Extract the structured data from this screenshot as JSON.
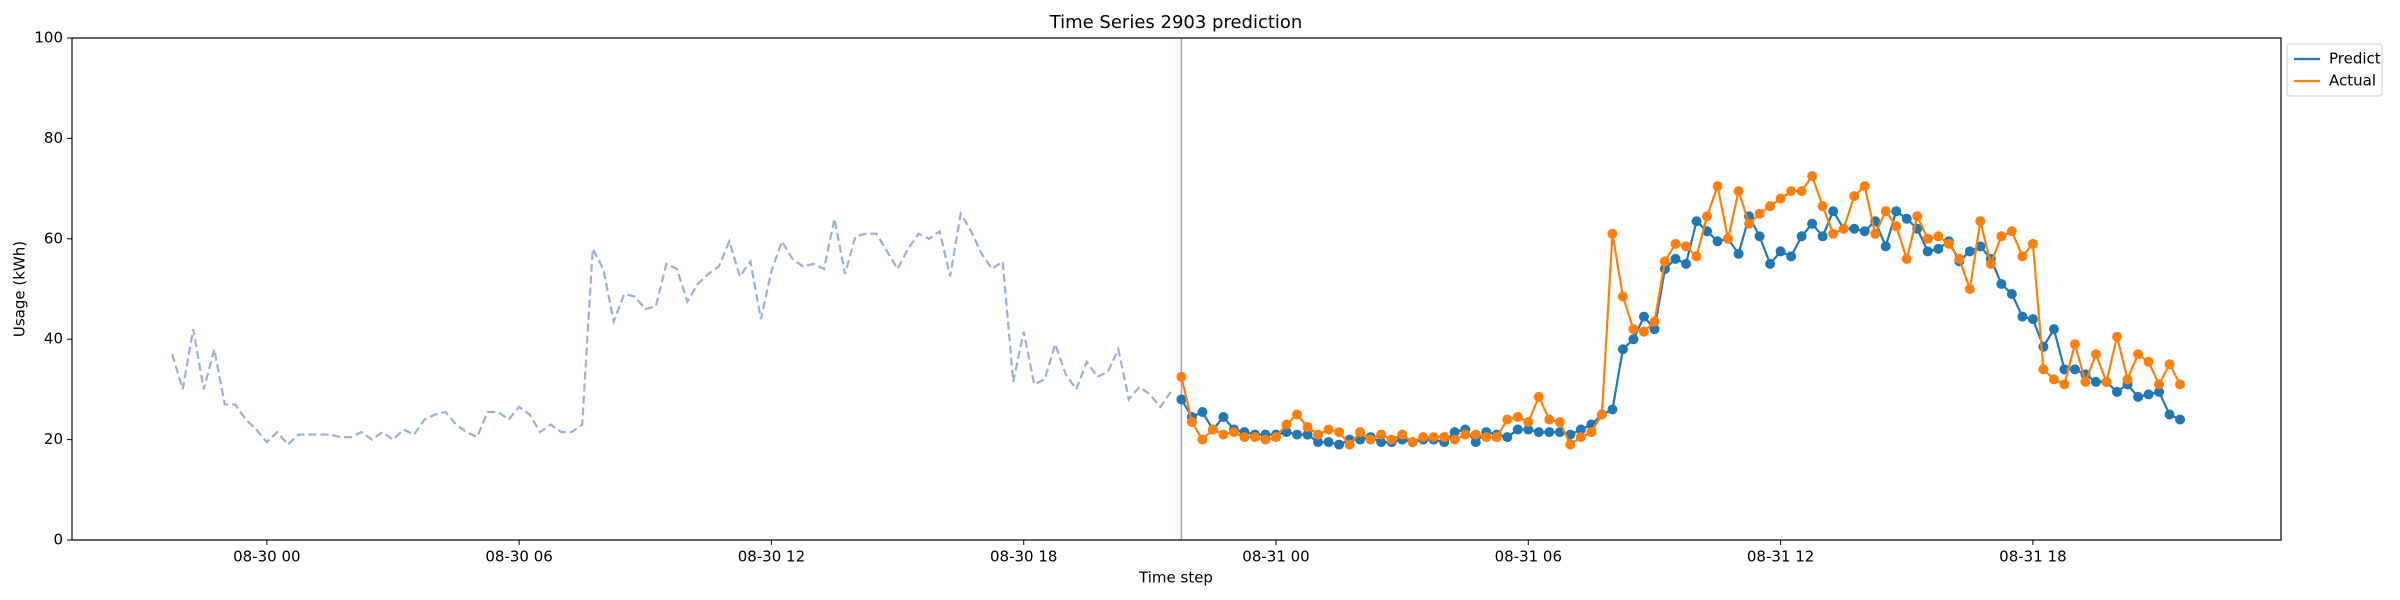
{
  "chart_data": {
    "type": "line",
    "title": "Time Series 2903 prediction",
    "xlabel": "Time step",
    "ylabel": "Usage (kWh)",
    "xlim": [
      "08-29 19:22",
      "08-31 23:54"
    ],
    "xticks": [
      {
        "value": "08-30 00:00",
        "label": "08-30 00"
      },
      {
        "value": "08-30 06:00",
        "label": "08-30 06"
      },
      {
        "value": "08-30 12:00",
        "label": "08-30 12"
      },
      {
        "value": "08-30 18:00",
        "label": "08-30 18"
      },
      {
        "value": "08-31 00:00",
        "label": "08-31 00"
      },
      {
        "value": "08-31 06:00",
        "label": "08-31 06"
      },
      {
        "value": "08-31 12:00",
        "label": "08-31 12"
      },
      {
        "value": "08-31 18:00",
        "label": "08-31 18"
      }
    ],
    "ylim": [
      0,
      100
    ],
    "yticks": [
      0,
      20,
      40,
      60,
      80,
      100
    ],
    "grid": false,
    "legend": "outside-upper-right",
    "vline": "08-30 21:45",
    "vline_color": "#8ea6d6",
    "history": {
      "color": "#9ab0d6",
      "x": [
        "08-29 21:45",
        "08-29 22:00",
        "08-29 22:15",
        "08-29 22:30",
        "08-29 22:45",
        "08-29 23:00",
        "08-29 23:15",
        "08-29 23:30",
        "08-29 23:45",
        "08-30 00:00",
        "08-30 00:15",
        "08-30 00:30",
        "08-30 00:45",
        "08-30 01:00",
        "08-30 01:15",
        "08-30 01:30",
        "08-30 01:45",
        "08-30 02:00",
        "08-30 02:15",
        "08-30 02:30",
        "08-30 02:45",
        "08-30 03:00",
        "08-30 03:15",
        "08-30 03:30",
        "08-30 03:45",
        "08-30 04:00",
        "08-30 04:15",
        "08-30 04:30",
        "08-30 04:45",
        "08-30 05:00",
        "08-30 05:15",
        "08-30 05:30",
        "08-30 05:45",
        "08-30 06:00",
        "08-30 06:15",
        "08-30 06:30",
        "08-30 06:45",
        "08-30 07:00",
        "08-30 07:15",
        "08-30 07:30",
        "08-30 07:45",
        "08-30 08:00",
        "08-30 08:15",
        "08-30 08:30",
        "08-30 08:45",
        "08-30 09:00",
        "08-30 09:15",
        "08-30 09:30",
        "08-30 09:45",
        "08-30 10:00",
        "08-30 10:15",
        "08-30 10:30",
        "08-30 10:45",
        "08-30 11:00",
        "08-30 11:15",
        "08-30 11:30",
        "08-30 11:45",
        "08-30 12:00",
        "08-30 12:15",
        "08-30 12:30",
        "08-30 12:45",
        "08-30 13:00",
        "08-30 13:15",
        "08-30 13:30",
        "08-30 13:45",
        "08-30 14:00",
        "08-30 14:15",
        "08-30 14:30",
        "08-30 14:45",
        "08-30 15:00",
        "08-30 15:15",
        "08-30 15:30",
        "08-30 15:45",
        "08-30 16:00",
        "08-30 16:15",
        "08-30 16:30",
        "08-30 16:45",
        "08-30 17:00",
        "08-30 17:15",
        "08-30 17:30",
        "08-30 17:45",
        "08-30 18:00",
        "08-30 18:15",
        "08-30 18:30",
        "08-30 18:45",
        "08-30 19:00",
        "08-30 19:15",
        "08-30 19:30",
        "08-30 19:45",
        "08-30 20:00",
        "08-30 20:15",
        "08-30 20:30",
        "08-30 20:45",
        "08-30 21:00",
        "08-30 21:15",
        "08-30 21:30"
      ],
      "values": [
        37,
        30,
        42,
        30,
        38,
        27,
        27,
        24,
        22,
        19.5,
        21.5,
        19,
        21,
        21,
        21,
        21,
        20.5,
        20.5,
        21.5,
        20,
        21.5,
        20,
        22,
        21,
        24,
        25,
        25.5,
        23,
        21.5,
        20.5,
        25.5,
        25.5,
        24,
        26.5,
        25,
        21.5,
        23,
        21.5,
        21.5,
        23,
        58,
        54,
        43.5,
        49,
        48.5,
        46,
        46.5,
        55,
        54,
        47.5,
        51,
        53,
        54.5,
        59.5,
        52.5,
        55.5,
        44,
        53.5,
        59.5,
        56,
        54.5,
        55,
        54,
        64,
        53,
        60.5,
        61,
        61,
        57.5,
        54,
        58,
        61,
        60,
        61.5,
        52.5,
        65,
        61.5,
        57,
        54,
        55.5,
        31.5,
        41.5,
        31,
        32,
        39,
        33,
        30,
        35.5,
        32.5,
        33.5,
        38,
        28,
        30.5,
        29,
        26.5,
        29.5
      ]
    },
    "x": [
      "08-30 21:45",
      "08-30 22:00",
      "08-30 22:15",
      "08-30 22:30",
      "08-30 22:45",
      "08-30 23:00",
      "08-30 23:15",
      "08-30 23:30",
      "08-30 23:45",
      "08-31 00:00",
      "08-31 00:15",
      "08-31 00:30",
      "08-31 00:45",
      "08-31 01:00",
      "08-31 01:15",
      "08-31 01:30",
      "08-31 01:45",
      "08-31 02:00",
      "08-31 02:15",
      "08-31 02:30",
      "08-31 02:45",
      "08-31 03:00",
      "08-31 03:15",
      "08-31 03:30",
      "08-31 03:45",
      "08-31 04:00",
      "08-31 04:15",
      "08-31 04:30",
      "08-31 04:45",
      "08-31 05:00",
      "08-31 05:15",
      "08-31 05:30",
      "08-31 05:45",
      "08-31 06:00",
      "08-31 06:15",
      "08-31 06:30",
      "08-31 06:45",
      "08-31 07:00",
      "08-31 07:15",
      "08-31 07:30",
      "08-31 07:45",
      "08-31 08:00",
      "08-31 08:15",
      "08-31 08:30",
      "08-31 08:45",
      "08-31 09:00",
      "08-31 09:15",
      "08-31 09:30",
      "08-31 09:45",
      "08-31 10:00",
      "08-31 10:15",
      "08-31 10:30",
      "08-31 10:45",
      "08-31 11:00",
      "08-31 11:15",
      "08-31 11:30",
      "08-31 11:45",
      "08-31 12:00",
      "08-31 12:15",
      "08-31 12:30",
      "08-31 12:45",
      "08-31 13:00",
      "08-31 13:15",
      "08-31 13:30",
      "08-31 13:45",
      "08-31 14:00",
      "08-31 14:15",
      "08-31 14:30",
      "08-31 14:45",
      "08-31 15:00",
      "08-31 15:15",
      "08-31 15:30",
      "08-31 15:45",
      "08-31 16:00",
      "08-31 16:15",
      "08-31 16:30",
      "08-31 16:45",
      "08-31 17:00",
      "08-31 17:15",
      "08-31 17:30",
      "08-31 17:45",
      "08-31 18:00",
      "08-31 18:15",
      "08-31 18:30",
      "08-31 18:45",
      "08-31 19:00",
      "08-31 19:15",
      "08-31 19:30",
      "08-31 19:45",
      "08-31 20:00",
      "08-31 20:15",
      "08-31 20:30",
      "08-31 20:45",
      "08-31 21:00",
      "08-31 21:15",
      "08-31 21:30"
    ],
    "series": [
      {
        "name": "Predict",
        "color": "#1f77b4",
        "values": [
          28,
          24.5,
          25.5,
          22,
          24.5,
          22,
          21.5,
          21,
          21,
          21,
          21.5,
          21,
          21,
          19.5,
          19.5,
          19,
          20,
          20,
          20.5,
          19.5,
          19.5,
          20,
          19.5,
          20,
          20,
          19.5,
          21.5,
          22,
          19.5,
          21.5,
          21,
          20.5,
          22,
          22,
          21.5,
          21.5,
          21.5,
          21,
          22,
          23,
          25,
          26,
          38,
          40,
          44.5,
          42,
          54,
          56,
          55,
          63.5,
          61.5,
          59.5,
          60,
          57,
          64.5,
          60.5,
          55,
          57.5,
          56.5,
          60.5,
          63,
          60.5,
          65.5,
          62,
          62,
          61.5,
          63.5,
          58.5,
          65.5,
          64,
          62,
          57.5,
          58,
          59.5,
          55.5,
          57.5,
          58.5,
          56,
          51,
          49,
          44.5,
          44,
          38.5,
          42,
          34,
          34,
          33,
          31.5,
          31.5,
          29.5,
          31,
          28.5,
          29,
          29.5,
          25,
          24
        ]
      },
      {
        "name": "Actual",
        "color": "#ff7f0e",
        "values": [
          32.5,
          23.5,
          20,
          22,
          21,
          21.5,
          20.5,
          20.5,
          20,
          20.5,
          23,
          25,
          22.5,
          21,
          22,
          21.5,
          19,
          21.5,
          20,
          21,
          20,
          21,
          19.5,
          20.5,
          20.5,
          20.5,
          20,
          21,
          21,
          20.5,
          20.5,
          24,
          24.5,
          23.5,
          28.5,
          24,
          23.5,
          19,
          20.5,
          21.5,
          25,
          61,
          48.5,
          42,
          41.5,
          43.5,
          55.5,
          59,
          58.5,
          56.5,
          64.5,
          70.5,
          60,
          69.5,
          63,
          65,
          66.5,
          68,
          69.5,
          69.5,
          72.5,
          66.5,
          61,
          62,
          68.5,
          70.5,
          61,
          65.5,
          62.5,
          56,
          64.5,
          60,
          60.5,
          59,
          56,
          50,
          63.5,
          55,
          60.5,
          61.5,
          56.5,
          59,
          34,
          32,
          31,
          39,
          31.5,
          37,
          31.5,
          40.5,
          32,
          37,
          35.5,
          31,
          35,
          31
        ]
      }
    ]
  }
}
